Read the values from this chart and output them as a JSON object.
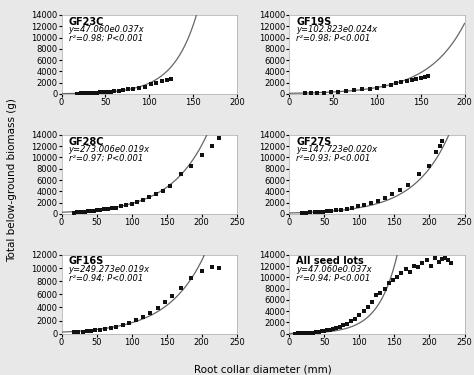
{
  "panels": [
    {
      "label": "GF23C",
      "eq_display": "y=47.060e0.037x",
      "r2_display": "r²=0.98; P<0.001",
      "a": 47.06,
      "b": 0.037,
      "x_data": [
        18,
        22,
        25,
        28,
        32,
        36,
        40,
        44,
        48,
        52,
        56,
        60,
        65,
        70,
        76,
        82,
        88,
        95,
        102,
        108,
        115,
        120,
        125
      ],
      "y_data": [
        50,
        80,
        100,
        120,
        150,
        200,
        220,
        260,
        300,
        380,
        420,
        500,
        580,
        700,
        800,
        950,
        1100,
        1300,
        1700,
        2000,
        2300,
        2500,
        2600
      ],
      "noise_seed": 11,
      "xmax": 200,
      "ymax": 14000,
      "yticks": [
        0,
        2000,
        4000,
        6000,
        8000,
        10000,
        12000,
        14000
      ],
      "xticks": [
        0,
        50,
        100,
        150,
        200
      ]
    },
    {
      "label": "GF19S",
      "eq_display": "y=102.823e0.024x",
      "r2_display": "r²=0.98; P<0.001",
      "a": 102.823,
      "b": 0.024,
      "x_data": [
        18,
        25,
        32,
        40,
        48,
        56,
        65,
        74,
        83,
        92,
        100,
        108,
        116,
        122,
        128,
        134,
        140,
        145,
        150,
        155,
        158
      ],
      "y_data": [
        100,
        130,
        160,
        200,
        280,
        380,
        500,
        650,
        800,
        950,
        1100,
        1350,
        1600,
        1900,
        2100,
        2300,
        2500,
        2700,
        2850,
        3000,
        3100
      ],
      "noise_seed": 22,
      "xmax": 200,
      "ymax": 14000,
      "yticks": [
        0,
        2000,
        4000,
        6000,
        8000,
        10000,
        12000,
        14000
      ],
      "xticks": [
        0,
        50,
        100,
        150,
        200
      ]
    },
    {
      "label": "GF28C",
      "eq_display": "y=273.006e0.019x",
      "r2_display": "r²=0.97; P<0.001",
      "a": 273.006,
      "b": 0.019,
      "x_data": [
        18,
        22,
        26,
        30,
        34,
        38,
        42,
        46,
        50,
        55,
        60,
        66,
        72,
        78,
        85,
        92,
        100,
        108,
        116,
        125,
        135,
        145,
        155,
        170,
        185,
        200,
        215,
        225
      ],
      "y_data": [
        200,
        250,
        300,
        350,
        400,
        450,
        500,
        550,
        620,
        700,
        800,
        900,
        1000,
        1100,
        1300,
        1500,
        1800,
        2100,
        2500,
        3000,
        3500,
        4000,
        5000,
        7000,
        8500,
        10500,
        12000,
        13500
      ],
      "noise_seed": 33,
      "xmax": 250,
      "ymax": 14000,
      "yticks": [
        0,
        2000,
        4000,
        6000,
        8000,
        10000,
        12000,
        14000
      ],
      "xticks": [
        0,
        50,
        100,
        150,
        200,
        250
      ]
    },
    {
      "label": "GF27S",
      "eq_display": "y=147.723e0.020x",
      "r2_display": "r²=0.93; P<0.001",
      "a": 147.723,
      "b": 0.02,
      "x_data": [
        18,
        24,
        30,
        36,
        42,
        48,
        54,
        60,
        67,
        74,
        82,
        90,
        98,
        107,
        116,
        126,
        136,
        147,
        158,
        170,
        185,
        200,
        210,
        215,
        218
      ],
      "y_data": [
        150,
        200,
        250,
        300,
        350,
        400,
        480,
        560,
        650,
        760,
        900,
        1100,
        1300,
        1600,
        1900,
        2300,
        2800,
        3500,
        4200,
        5200,
        7000,
        8500,
        11000,
        12000,
        13000
      ],
      "noise_seed": 44,
      "xmax": 250,
      "ymax": 14000,
      "yticks": [
        0,
        2000,
        4000,
        6000,
        8000,
        10000,
        12000,
        14000
      ],
      "xticks": [
        0,
        50,
        100,
        150,
        200,
        250
      ]
    },
    {
      "label": "GF16S",
      "eq_display": "y=249.273e0.019x",
      "r2_display": "r²=0.94; P<0.001",
      "a": 249.273,
      "b": 0.019,
      "x_data": [
        18,
        24,
        30,
        36,
        42,
        48,
        55,
        62,
        70,
        78,
        87,
        96,
        106,
        116,
        126,
        137,
        148,
        158,
        170,
        185,
        200,
        215,
        225
      ],
      "y_data": [
        200,
        250,
        310,
        370,
        430,
        520,
        620,
        750,
        900,
        1100,
        1400,
        1700,
        2100,
        2600,
        3200,
        3900,
        4800,
        5800,
        7000,
        8500,
        9500,
        10200,
        10000
      ],
      "noise_seed": 55,
      "xmax": 250,
      "ymax": 12000,
      "yticks": [
        0,
        2000,
        4000,
        6000,
        8000,
        10000,
        12000
      ],
      "xticks": [
        0,
        50,
        100,
        150,
        200,
        250
      ]
    },
    {
      "label": "All seed lots",
      "eq_display": "y=47.060e0.037x",
      "r2_display": "r²=0.94; P<0.001",
      "a": 47.06,
      "b": 0.037,
      "x_data": [
        8,
        12,
        16,
        20,
        23,
        26,
        30,
        34,
        38,
        42,
        46,
        50,
        54,
        58,
        62,
        67,
        72,
        77,
        82,
        88,
        94,
        100,
        106,
        112,
        118,
        124,
        130,
        136,
        142,
        148,
        154,
        160,
        166,
        172,
        178,
        184,
        190,
        196,
        202,
        208,
        214,
        218,
        222,
        226,
        230
      ],
      "y_data": [
        30,
        50,
        70,
        90,
        110,
        140,
        180,
        220,
        280,
        340,
        410,
        490,
        600,
        720,
        860,
        1050,
        1250,
        1500,
        1800,
        2200,
        2700,
        3300,
        4000,
        4800,
        5700,
        6800,
        7200,
        8000,
        9000,
        9500,
        10000,
        10800,
        11500,
        11000,
        12000,
        11800,
        12500,
        13000,
        12000,
        13500,
        12800,
        13200,
        13500,
        13000,
        12500
      ],
      "noise_seed": 66,
      "xmax": 250,
      "ymax": 14000,
      "yticks": [
        0,
        2000,
        4000,
        6000,
        8000,
        10000,
        12000,
        14000
      ],
      "xticks": [
        0,
        50,
        100,
        150,
        200,
        250
      ]
    }
  ],
  "ylabel": "Total below-ground biomass (g)",
  "xlabel": "Root collar diameter (mm)",
  "fig_bg_color": "#e8e8e8",
  "plot_bg": "#ffffff",
  "marker_color": "#111111",
  "curve_color": "#666666",
  "fontsize_ylabel": 7.5,
  "fontsize_xlabel": 7.5,
  "fontsize_title": 7,
  "fontsize_eq": 6,
  "fontsize_axis": 6
}
